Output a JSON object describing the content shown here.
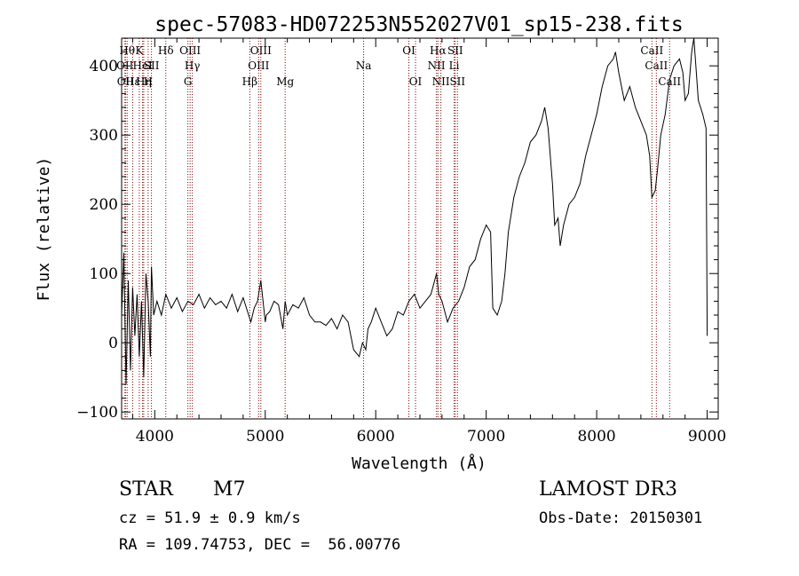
{
  "chart_data": {
    "type": "line",
    "title": "spec-57083-HD072253N552027V01_sp15-238.fits",
    "xlabel": "Wavelength (Å)",
    "ylabel": "Flux (relative)",
    "xlim": [
      3700,
      9100
    ],
    "ylim": [
      -110,
      440
    ],
    "xticks": [
      4000,
      5000,
      6000,
      7000,
      8000,
      9000
    ],
    "yticks": [
      -100,
      0,
      100,
      200,
      300,
      400
    ],
    "grid": false,
    "line_color": "#000000",
    "marker_color": "#8b0000",
    "spectrum": {
      "x": [
        3700,
        3720,
        3740,
        3760,
        3780,
        3800,
        3820,
        3840,
        3860,
        3880,
        3900,
        3920,
        3940,
        3960,
        3970,
        3990,
        4020,
        4060,
        4100,
        4150,
        4200,
        4250,
        4300,
        4350,
        4400,
        4450,
        4500,
        4550,
        4600,
        4650,
        4700,
        4750,
        4800,
        4850,
        4870,
        4900,
        4930,
        4960,
        4980,
        5000,
        5010,
        5040,
        5080,
        5120,
        5160,
        5180,
        5200,
        5250,
        5300,
        5350,
        5400,
        5450,
        5500,
        5550,
        5600,
        5650,
        5700,
        5750,
        5800,
        5850,
        5880,
        5910,
        5930,
        5960,
        6000,
        6050,
        6100,
        6150,
        6200,
        6250,
        6300,
        6350,
        6400,
        6450,
        6500,
        6550,
        6570,
        6600,
        6650,
        6700,
        6750,
        6800,
        6850,
        6900,
        6950,
        7000,
        7040,
        7060,
        7100,
        7140,
        7170,
        7200,
        7250,
        7300,
        7350,
        7400,
        7450,
        7500,
        7530,
        7560,
        7600,
        7620,
        7650,
        7670,
        7700,
        7750,
        7800,
        7850,
        7900,
        7950,
        8000,
        8050,
        8100,
        8150,
        8170,
        8200,
        8250,
        8300,
        8350,
        8400,
        8450,
        8480,
        8500,
        8530,
        8550,
        8580,
        8620,
        8660,
        8700,
        8750,
        8780,
        8800,
        8830,
        8860,
        8880,
        8920,
        8960,
        8990,
        9000
      ],
      "y": [
        40,
        130,
        -60,
        90,
        -40,
        80,
        10,
        70,
        -20,
        60,
        -50,
        100,
        60,
        -20,
        110,
        40,
        60,
        40,
        70,
        50,
        65,
        45,
        60,
        55,
        70,
        50,
        65,
        55,
        60,
        50,
        70,
        45,
        65,
        40,
        30,
        50,
        60,
        90,
        60,
        30,
        40,
        45,
        60,
        55,
        20,
        60,
        40,
        55,
        50,
        65,
        40,
        30,
        30,
        25,
        35,
        20,
        40,
        30,
        -10,
        -20,
        0,
        -10,
        20,
        30,
        50,
        30,
        10,
        20,
        45,
        40,
        60,
        70,
        50,
        60,
        70,
        100,
        70,
        60,
        30,
        50,
        60,
        80,
        110,
        120,
        150,
        170,
        160,
        50,
        40,
        60,
        100,
        160,
        210,
        240,
        260,
        290,
        300,
        320,
        340,
        310,
        230,
        170,
        180,
        140,
        170,
        200,
        210,
        230,
        270,
        300,
        330,
        370,
        400,
        410,
        420,
        390,
        350,
        370,
        340,
        320,
        300,
        270,
        210,
        220,
        250,
        300,
        330,
        380,
        400,
        410,
        390,
        350,
        360,
        420,
        440,
        350,
        330,
        310,
        10
      ]
    },
    "lines": [
      {
        "x": 3750,
        "label": "Hθ",
        "row": 1
      },
      {
        "x": 3730,
        "label": "OII",
        "row": 2
      },
      {
        "x": 3735,
        "label": "OII",
        "row": 3
      },
      {
        "x": 3800,
        "label": "Hε",
        "row": 3
      },
      {
        "x": 3860,
        "label": "K",
        "row": 1
      },
      {
        "x": 3890,
        "label": "HeI",
        "row": 2
      },
      {
        "x": 3900,
        "label": "Hη",
        "row": 3
      },
      {
        "x": 3940,
        "label": "H",
        "row": 3
      },
      {
        "x": 3970,
        "label": "SII",
        "row": 2
      },
      {
        "x": 4100,
        "label": "Hδ",
        "row": 1
      },
      {
        "x": 4320,
        "label": "OIII",
        "row": 1
      },
      {
        "x": 4340,
        "label": "Hγ",
        "row": 2
      },
      {
        "x": 4300,
        "label": "G",
        "row": 3
      },
      {
        "x": 4860,
        "label": "Hβ",
        "row": 3
      },
      {
        "x": 4960,
        "label": "OIII",
        "row": 1
      },
      {
        "x": 4940,
        "label": "OIII",
        "row": 2
      },
      {
        "x": 5180,
        "label": "Mg",
        "row": 3
      },
      {
        "x": 5890,
        "label": "Na",
        "row": 2
      },
      {
        "x": 6300,
        "label": "OI",
        "row": 1
      },
      {
        "x": 6360,
        "label": "OI",
        "row": 3
      },
      {
        "x": 6563,
        "label": "Hα",
        "row": 1
      },
      {
        "x": 6550,
        "label": "NII",
        "row": 2
      },
      {
        "x": 6590,
        "label": "NII",
        "row": 3
      },
      {
        "x": 6720,
        "label": "SII",
        "row": 1
      },
      {
        "x": 6710,
        "label": "Li",
        "row": 2
      },
      {
        "x": 6740,
        "label": "SII",
        "row": 3
      },
      {
        "x": 8500,
        "label": "CaII",
        "row": 1
      },
      {
        "x": 8540,
        "label": "CaII",
        "row": 2
      },
      {
        "x": 8660,
        "label": "CaII",
        "row": 3
      }
    ]
  },
  "info": {
    "class_label": "STAR",
    "subclass": "M7",
    "survey": "LAMOST DR3",
    "cz": "cz = 51.9 ± 0.9 km/s",
    "obs_date": "Obs-Date: 20150301",
    "coords": "RA = 109.74753, DEC =  56.00776"
  }
}
